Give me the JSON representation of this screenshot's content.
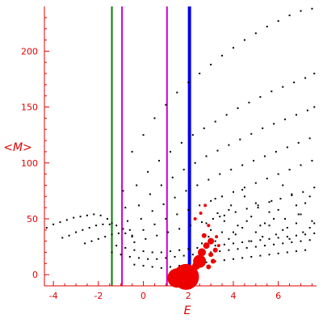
{
  "chart_data": {
    "type": "scatter",
    "title": "",
    "xlabel": "E",
    "ylabel": "<M>",
    "xlim": [
      -4.4,
      7.7
    ],
    "ylim": [
      -10,
      240
    ],
    "grid": false,
    "x_ticks": [
      -4,
      -2,
      0,
      2,
      4,
      6
    ],
    "y_ticks": [
      0,
      50,
      100,
      150,
      200
    ],
    "colors": {
      "axes": "#e00000",
      "points": "#000000",
      "bubbles": "#ee0000",
      "green_line": "#008000",
      "magenta_line": "#cc00cc",
      "blue_line": "#0000ee"
    },
    "vertical_lines": [
      {
        "x": -1.4,
        "color": "#008000",
        "style": "thin"
      },
      {
        "x": -0.95,
        "color": "#cc00cc",
        "style": "thin"
      },
      {
        "x": 1.05,
        "color": "#cc00cc",
        "style": "thin"
      },
      {
        "x": 2.05,
        "color": "#0000ee",
        "style": "thick"
      }
    ],
    "point_series": [
      {
        "x": [
          -0.9,
          -0.5,
          0.0,
          0.5,
          1.0,
          1.5,
          2.0,
          2.5,
          3.0,
          3.5,
          4.0,
          4.5,
          5.0,
          5.5,
          6.0,
          6.5,
          7.0,
          7.5
        ],
        "y": [
          75,
          110,
          125,
          140,
          152,
          163,
          172,
          180,
          188,
          196,
          203,
          210,
          216,
          222,
          227,
          232,
          236,
          238
        ]
      },
      {
        "x": [
          -0.8,
          -0.3,
          0.2,
          0.7,
          1.2,
          1.7,
          2.2,
          2.7,
          3.2,
          3.7,
          4.2,
          4.7,
          5.2,
          5.7,
          6.2,
          6.7,
          7.2,
          7.6
        ],
        "y": [
          60,
          80,
          92,
          102,
          110,
          118,
          125,
          131,
          137,
          143,
          149,
          154,
          159,
          164,
          168,
          172,
          176,
          180
        ]
      },
      {
        "x": [
          -0.7,
          -0.2,
          0.3,
          0.8,
          1.3,
          1.8,
          2.3,
          2.8,
          3.3,
          3.8,
          4.3,
          4.8,
          5.3,
          5.8,
          6.3,
          6.8,
          7.3,
          7.6
        ],
        "y": [
          48,
          62,
          72,
          80,
          87,
          94,
          100,
          106,
          111,
          116,
          121,
          126,
          131,
          135,
          139,
          143,
          147,
          150
        ]
      },
      {
        "x": [
          -0.6,
          -0.1,
          0.4,
          0.9,
          1.4,
          1.9,
          2.4,
          2.9,
          3.4,
          3.9,
          4.4,
          4.9,
          5.4,
          5.9,
          6.4,
          6.9,
          7.4
        ],
        "y": [
          40,
          50,
          57,
          63,
          69,
          75,
          80,
          85,
          90,
          94,
          98,
          102,
          106,
          110,
          114,
          118,
          122
        ]
      },
      {
        "x": [
          -0.5,
          0.0,
          0.5,
          1.0,
          1.5,
          2.0,
          2.5,
          3.0,
          3.5,
          4.0,
          4.5,
          5.0,
          5.5,
          6.0,
          6.5,
          7.0,
          7.5
        ],
        "y": [
          34,
          40,
          45,
          50,
          54,
          58,
          62,
          66,
          70,
          74,
          78,
          82,
          86,
          90,
          94,
          98,
          102
        ]
      },
      {
        "x": [
          -0.4,
          0.1,
          0.6,
          1.1,
          1.6,
          2.1,
          2.6,
          3.1,
          3.6,
          4.1,
          4.6,
          5.1,
          5.6,
          6.1,
          6.6,
          7.1,
          7.6
        ],
        "y": [
          29,
          32,
          35,
          38,
          41,
          44,
          47,
          50,
          53,
          56,
          59,
          62,
          65,
          68,
          71,
          74,
          78
        ]
      },
      {
        "x": [
          -4.3,
          -4.0,
          -3.7,
          -3.4,
          -3.1,
          -2.8,
          -2.5,
          -2.2,
          -1.9,
          -1.6,
          -1.4
        ],
        "y": [
          42,
          45,
          47,
          49,
          51,
          52,
          53,
          54,
          53,
          50,
          46
        ]
      },
      {
        "x": [
          -3.6,
          -3.3,
          -3.0,
          -2.7,
          -2.4,
          -2.1,
          -1.8,
          -1.5,
          -1.2,
          -0.9
        ],
        "y": [
          33,
          35,
          38,
          40,
          42,
          44,
          45,
          45,
          44,
          41
        ]
      },
      {
        "x": [
          -2.6,
          -2.3,
          -2.0,
          -1.7,
          -1.4,
          -1.1,
          -0.8,
          -0.5
        ],
        "y": [
          28,
          30,
          32,
          34,
          36,
          37,
          37,
          35
        ]
      },
      {
        "x": [
          -1.4,
          -1.0,
          -0.6,
          -0.2,
          0.2,
          0.6,
          1.0,
          1.4,
          1.8,
          2.2,
          2.6,
          3.0,
          3.4,
          3.8,
          4.2,
          4.6,
          5.0,
          5.4,
          5.8,
          6.2,
          6.6,
          7.0,
          7.4
        ],
        "y": [
          20,
          18,
          16,
          15,
          14,
          14,
          15,
          16,
          17,
          18,
          19,
          20,
          21,
          22,
          23,
          24,
          25,
          26,
          27,
          28,
          29,
          30,
          31
        ]
      },
      {
        "x": [
          -1.2,
          -0.8,
          -0.4,
          0.0,
          0.4,
          0.8,
          1.2,
          1.6,
          2.0,
          2.4,
          2.8,
          3.2,
          3.6,
          4.0,
          4.4,
          4.8,
          5.2,
          5.6,
          6.0,
          6.4,
          6.8,
          7.2,
          7.6
        ],
        "y": [
          26,
          24,
          22,
          21,
          20,
          20,
          21,
          22,
          23,
          24,
          25,
          26,
          27,
          28,
          29,
          30,
          31,
          32,
          33,
          34,
          35,
          36,
          37
        ]
      },
      {
        "x": [
          -0.4,
          0.0,
          0.4,
          0.8,
          1.2,
          1.6,
          2.0,
          2.4,
          2.8,
          3.2,
          3.6,
          4.0,
          4.4,
          4.8,
          5.2,
          5.6,
          6.0,
          6.4,
          6.8,
          7.2
        ],
        "y": [
          9,
          8,
          7,
          6,
          7,
          8,
          9,
          10,
          11,
          12,
          13,
          14,
          15,
          16,
          17,
          18,
          19,
          20,
          21,
          22
        ]
      },
      {
        "x": [
          3.0,
          3.3,
          3.6,
          3.9,
          4.2,
          4.5,
          4.8,
          5.1,
          5.4,
          5.7,
          6.0,
          6.3,
          6.6,
          6.9,
          7.2,
          7.5,
          3.2,
          3.8,
          4.4,
          5.0,
          5.6,
          6.2,
          6.8,
          7.4
        ],
        "y": [
          40,
          55,
          48,
          62,
          44,
          70,
          52,
          60,
          46,
          66,
          58,
          50,
          72,
          54,
          64,
          48,
          68,
          58,
          76,
          64,
          56,
          80,
          62,
          70
        ]
      },
      {
        "x": [
          2.6,
          2.9,
          3.2,
          3.5,
          3.8,
          4.1,
          4.4,
          4.7,
          5.0,
          5.3,
          5.6,
          5.9,
          6.2,
          6.5,
          6.8,
          7.1,
          7.4,
          2.8,
          3.4,
          4.0,
          4.6,
          5.2,
          5.8,
          6.4,
          7.0,
          7.6
        ],
        "y": [
          28,
          34,
          30,
          38,
          32,
          36,
          42,
          30,
          38,
          34,
          44,
          36,
          40,
          32,
          46,
          38,
          42,
          46,
          52,
          38,
          48,
          44,
          50,
          42,
          54,
          46
        ]
      }
    ],
    "bubbles": [
      {
        "x": 1.5,
        "y": -3,
        "size": 12
      },
      {
        "x": 1.9,
        "y": -2,
        "size": 16
      },
      {
        "x": 2.0,
        "y": -4,
        "size": 12
      },
      {
        "x": 1.2,
        "y": -4,
        "size": 3
      },
      {
        "x": 2.5,
        "y": 12,
        "size": 8
      },
      {
        "x": 2.35,
        "y": 8,
        "size": 5
      },
      {
        "x": 2.6,
        "y": 20,
        "size": 5
      },
      {
        "x": 2.8,
        "y": 26,
        "size": 4
      },
      {
        "x": 3.0,
        "y": 30,
        "size": 4
      },
      {
        "x": 3.1,
        "y": 12,
        "size": 3
      },
      {
        "x": 3.2,
        "y": 22,
        "size": 3
      },
      {
        "x": 3.35,
        "y": 26,
        "size": 2
      },
      {
        "x": 2.7,
        "y": 35,
        "size": 3
      },
      {
        "x": 2.9,
        "y": 44,
        "size": 2
      },
      {
        "x": 2.55,
        "y": 55,
        "size": 2
      },
      {
        "x": 2.9,
        "y": 7,
        "size": 3
      },
      {
        "x": 3.0,
        "y": 18,
        "size": 3
      },
      {
        "x": 2.3,
        "y": 50,
        "size": 2
      },
      {
        "x": 2.75,
        "y": 62,
        "size": 2
      },
      {
        "x": 3.25,
        "y": 34,
        "size": 2
      }
    ]
  }
}
